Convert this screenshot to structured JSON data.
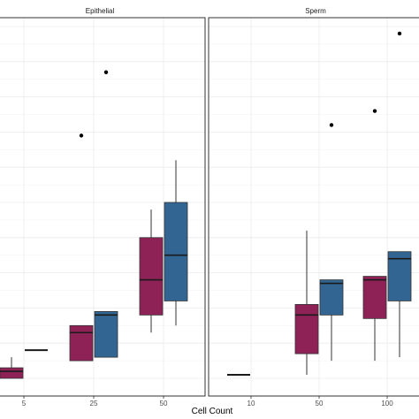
{
  "chart_data": {
    "type": "box",
    "xlabel": "Cell Count",
    "ylabel": "",
    "grid": true,
    "legend": "none",
    "series_colors": {
      "A": "#8e2257",
      "B": "#336592"
    },
    "ylim": [
      0,
      1
    ],
    "panels": [
      {
        "title": "Epithelial",
        "categories": [
          "5",
          "25",
          "50"
        ],
        "boxes": [
          {
            "category": "5",
            "series": "A",
            "min": 0.0,
            "q1": 0.0,
            "median": 0.02,
            "q3": 0.03,
            "max": 0.06,
            "outliers": []
          },
          {
            "category": "5",
            "series": "B",
            "min": 0.08,
            "q1": 0.08,
            "median": 0.08,
            "q3": 0.08,
            "max": 0.08,
            "outliers": []
          },
          {
            "category": "25",
            "series": "A",
            "min": 0.05,
            "q1": 0.05,
            "median": 0.13,
            "q3": 0.15,
            "max": 0.15,
            "outliers": [
              0.69
            ]
          },
          {
            "category": "25",
            "series": "B",
            "min": 0.06,
            "q1": 0.06,
            "median": 0.18,
            "q3": 0.19,
            "max": 0.19,
            "outliers": [
              0.87
            ]
          },
          {
            "category": "50",
            "series": "A",
            "min": 0.13,
            "q1": 0.18,
            "median": 0.28,
            "q3": 0.4,
            "max": 0.48,
            "outliers": []
          },
          {
            "category": "50",
            "series": "B",
            "min": 0.15,
            "q1": 0.22,
            "median": 0.35,
            "q3": 0.5,
            "max": 0.62,
            "outliers": []
          }
        ]
      },
      {
        "title": "Sperm",
        "categories": [
          "10",
          "50",
          "100"
        ],
        "boxes": [
          {
            "category": "10",
            "series": "A",
            "min": 0.01,
            "q1": 0.01,
            "median": 0.01,
            "q3": 0.01,
            "max": 0.01,
            "outliers": []
          },
          {
            "category": "50",
            "series": "A",
            "min": 0.01,
            "q1": 0.07,
            "median": 0.18,
            "q3": 0.21,
            "max": 0.42,
            "outliers": []
          },
          {
            "category": "50",
            "series": "B",
            "min": 0.05,
            "q1": 0.18,
            "median": 0.27,
            "q3": 0.28,
            "max": 0.28,
            "outliers": [
              0.72
            ]
          },
          {
            "category": "100",
            "series": "A",
            "min": 0.05,
            "q1": 0.17,
            "median": 0.28,
            "q3": 0.29,
            "max": 0.29,
            "outliers": [
              0.76
            ]
          },
          {
            "category": "100",
            "series": "B",
            "min": 0.06,
            "q1": 0.22,
            "median": 0.34,
            "q3": 0.36,
            "max": 0.36,
            "outliers": [
              0.98
            ]
          }
        ]
      }
    ]
  }
}
